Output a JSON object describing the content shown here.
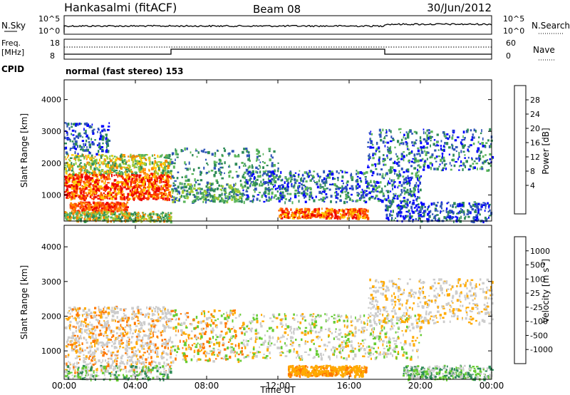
{
  "header": {
    "station": "Hankasalmi (fitACF)",
    "beam": "Beam 08",
    "date": "30/Jun/2012"
  },
  "noise_panel": {
    "left_label": "N.Sky",
    "left_ticks": [
      "10^5",
      "10^0"
    ],
    "right_ticks": [
      "10^5",
      "10^0"
    ],
    "right_label": "N.Search"
  },
  "freq_panel": {
    "left_label_1": "Freq.",
    "left_label_2": "[MHz]",
    "left_ticks": [
      "18",
      "8"
    ],
    "right_ticks": [
      "60",
      "0"
    ],
    "right_label": "Nave",
    "cpid_label": "CPID",
    "cpid_text": "normal (fast stereo) 153"
  },
  "chart_data": [
    {
      "type": "heatmap",
      "name": "power",
      "ylabel": "Slant Range [km]",
      "yticks": [
        "4000",
        "3000",
        "2000",
        "1000"
      ],
      "colorbar_label": "Power [dB]",
      "colorbar_ticks": [
        "28",
        "24",
        "20",
        "16",
        "12",
        "8",
        "4"
      ],
      "colors": [
        "#0000ff",
        "#2f55b8",
        "#2e8b57",
        "#5ab55a",
        "#aacc33",
        "#ffcc00",
        "#ff8800",
        "#ff4400",
        "#ee0000"
      ],
      "ylim": [
        180,
        4620
      ],
      "xlim_hours": [
        0,
        24
      ]
    },
    {
      "type": "heatmap",
      "name": "velocity",
      "ylabel": "Slant Range [km]",
      "yticks": [
        "4000",
        "3000",
        "2000",
        "1000"
      ],
      "colorbar_label": "Velocity [m s",
      "colorbar_label_sup": "-1",
      "colorbar_label_end": "]",
      "colorbar_ticks": [
        "1000",
        "500",
        "100",
        "25",
        "-25",
        "-100",
        "-500",
        "-1000"
      ],
      "colors": [
        "#2244bb",
        "#3a7fb0",
        "#2e8b57",
        "#66cc33",
        "#cccccc",
        "#ffaa00",
        "#ff7700",
        "#ff3300",
        "#ee0000"
      ],
      "ylim": [
        180,
        4620
      ],
      "xlim_hours": [
        0,
        24
      ]
    }
  ],
  "x_axis": {
    "ticks": [
      "00:00",
      "04:00",
      "08:00",
      "12:00",
      "16:00",
      "20:00",
      "00:00"
    ],
    "label": "Time UT"
  }
}
